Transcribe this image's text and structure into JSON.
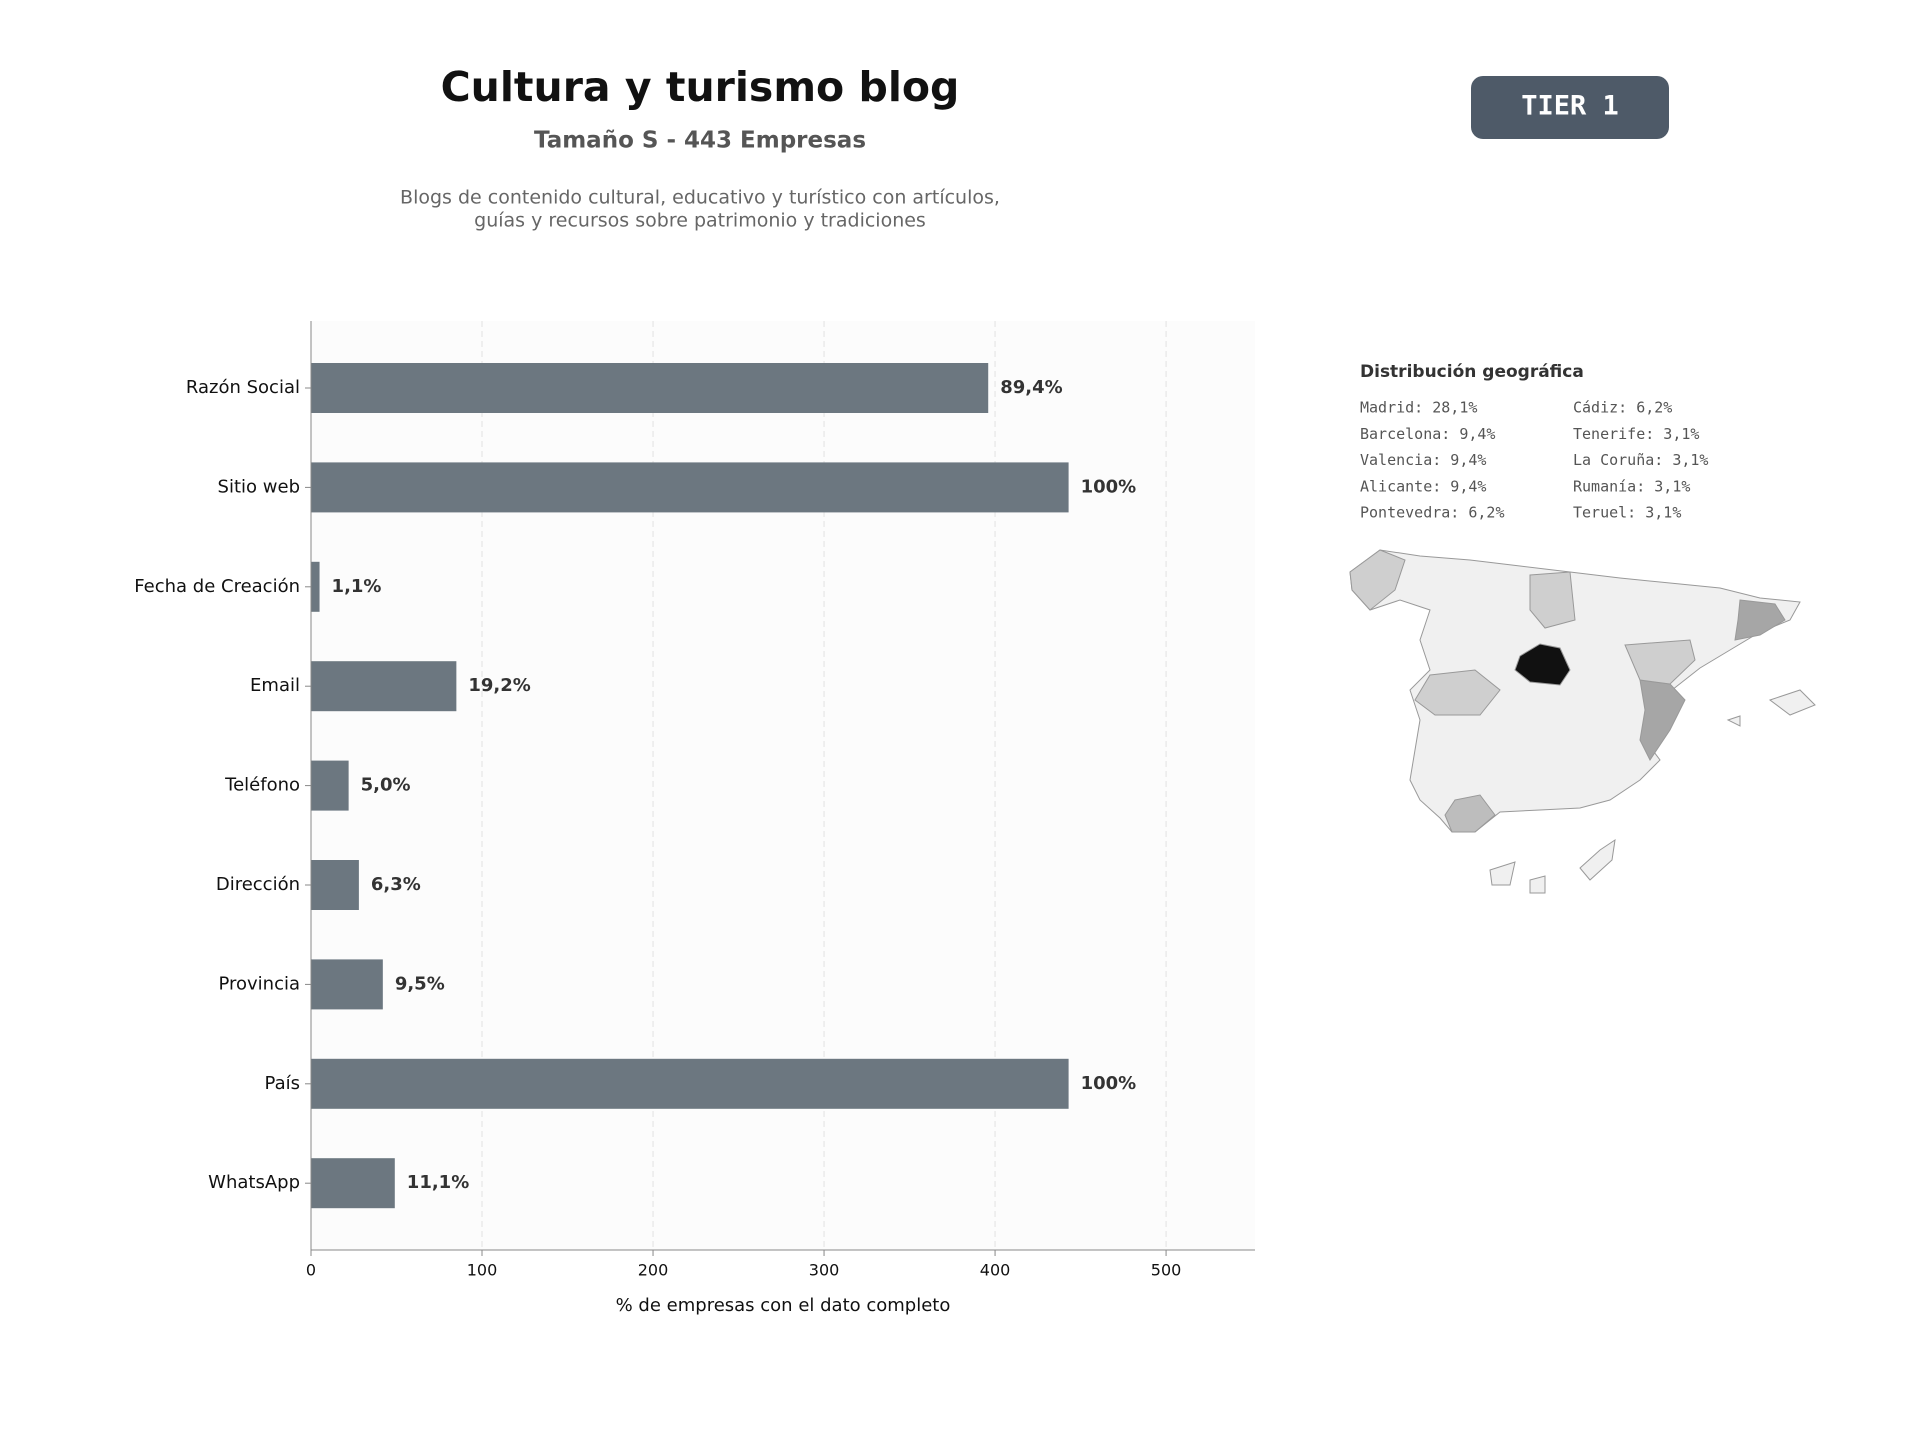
{
  "chart_data": {
    "type": "bar",
    "orientation": "horizontal",
    "title": "Cultura y turismo blog",
    "subtitle": "Tamaño S - 443 Empresas",
    "description": [
      "Blogs de contenido cultural, educativo y turístico con artículos,",
      "guías y recursos sobre patrimonio y tradiciones"
    ],
    "badge": "TIER 1",
    "categories": [
      "Razón Social",
      "Sitio web",
      "Fecha de Creación",
      "Email",
      "Teléfono",
      "Dirección",
      "Provincia",
      "País",
      "WhatsApp"
    ],
    "values": [
      396,
      443,
      5,
      85,
      22,
      28,
      42,
      443,
      49
    ],
    "value_labels": [
      "89,4%",
      "100%",
      "1,1%",
      "19,2%",
      "5,0%",
      "6,3%",
      "9,5%",
      "100%",
      "11,1%"
    ],
    "color": "#6c7780",
    "xlim": [
      0,
      552
    ],
    "xticks": [
      0,
      100,
      200,
      300,
      400,
      500
    ],
    "xlabel": "% de empresas con el dato completo",
    "grid": true,
    "geo_title": "Distribución geográfica",
    "geo_entries": [
      "Madrid: 28,1%",
      "Barcelona: 9,4%",
      "Valencia: 9,4%",
      "Alicante: 9,4%",
      "Pontevedra: 6,2%",
      "Cádiz: 6,2%",
      "Tenerife: 3,1%",
      "La Coruña: 3,1%",
      "Rumanía: 3,1%",
      "Teruel: 3,1%"
    ]
  }
}
